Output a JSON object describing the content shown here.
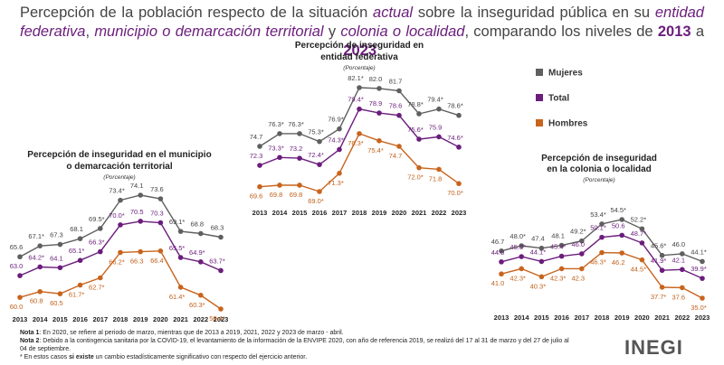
{
  "header": {
    "title_parts": [
      "Percepción de la población respecto de la situación ",
      "actual",
      " sobre la inseguridad pública en su ",
      "entidad federativa",
      ", ",
      "municipio o demarcación territorial",
      " y ",
      "colonia o localidad",
      ", comparando los niveles de ",
      "2013",
      " a ",
      "2023",
      "."
    ],
    "logo": "INEGI"
  },
  "chart_data": [
    {
      "type": "line",
      "title_lines": [
        "Percepción de inseguridad en",
        "entidad federativa"
      ],
      "subtitle": "(Porcentaje)",
      "x": [
        2013,
        2014,
        2015,
        2016,
        2017,
        2018,
        2019,
        2020,
        2021,
        2022,
        2023
      ],
      "series": [
        {
          "name": "Mujeres",
          "color": "#5f5f5f",
          "values": [
            74.7,
            76.3,
            76.3,
            75.3,
            76.9,
            82.1,
            82.0,
            81.7,
            78.8,
            79.4,
            78.6
          ],
          "value_labels": [
            "74.7",
            "76.3*",
            "76.3*",
            "75.3*",
            "76.9*",
            "82.1*",
            "82.0",
            "81.7",
            "78.8*",
            "79.4*",
            "78.6*"
          ]
        },
        {
          "name": "Total",
          "color": "#6b1d7c",
          "values": [
            72.3,
            73.3,
            73.2,
            72.4,
            74.3,
            79.4,
            78.9,
            78.6,
            75.6,
            75.9,
            74.6
          ],
          "value_labels": [
            "72.3",
            "73.3*",
            "73.2",
            "72.4*",
            "74.3*",
            "79.4*",
            "78.9",
            "78.6",
            "75.6*",
            "75.9",
            "74.6*"
          ]
        },
        {
          "name": "Hombres",
          "color": "#c8641e",
          "values": [
            69.6,
            69.8,
            69.8,
            69.0,
            71.3,
            76.3,
            75.4,
            74.7,
            72.0,
            71.8,
            70.0
          ],
          "value_labels": [
            "69.6",
            "69.8",
            "69.8",
            "69.0*",
            "71.3*",
            "76.3*",
            "75.4*",
            "74.7",
            "72.0*",
            "71.8",
            "70.0*"
          ]
        }
      ]
    },
    {
      "type": "line",
      "title_lines": [
        "Percepción de inseguridad en el  municipio",
        "o demarcación territorial"
      ],
      "subtitle": "(Porcentaje)",
      "x": [
        2013,
        2014,
        2015,
        2016,
        2017,
        2018,
        2019,
        2020,
        2021,
        2022,
        2023
      ],
      "series": [
        {
          "name": "Mujeres",
          "color": "#5f5f5f",
          "values": [
            65.6,
            67.1,
            67.3,
            68.1,
            69.5,
            73.4,
            74.1,
            73.6,
            69.1,
            68.8,
            68.3
          ],
          "value_labels": [
            "65.6",
            "67.1*",
            "67.3",
            "68.1",
            "69.5*",
            "73.4*",
            "74.1",
            "73.6",
            "69.1*",
            "68.8",
            "68.3"
          ]
        },
        {
          "name": "Total",
          "color": "#6b1d7c",
          "values": [
            63.0,
            64.2,
            64.1,
            65.1,
            66.3,
            70.0,
            70.5,
            70.3,
            65.5,
            64.9,
            63.7
          ],
          "value_labels": [
            "63.0",
            "64.2*",
            "64.1",
            "65.1*",
            "66.3*",
            "70.0*",
            "70.5",
            "70.3",
            "65.5*",
            "64.9*",
            "63.7*"
          ]
        },
        {
          "name": "Hombres",
          "color": "#c8641e",
          "values": [
            60.0,
            60.8,
            60.5,
            61.7,
            62.7,
            66.2,
            66.3,
            66.4,
            61.4,
            60.3,
            58.4
          ],
          "value_labels": [
            "60.0",
            "60.8",
            "60.5",
            "61.7*",
            "62.7*",
            "66.2*",
            "66.3",
            "66.4",
            "61.4*",
            "60.3*",
            "58.4*"
          ]
        }
      ]
    },
    {
      "type": "line",
      "title_lines": [
        "Percepción de inseguridad",
        "en la colonia o localidad"
      ],
      "subtitle": "(Porcentaje)",
      "x": [
        2013,
        2014,
        2015,
        2016,
        2017,
        2018,
        2019,
        2020,
        2021,
        2022,
        2023
      ],
      "series": [
        {
          "name": "Mujeres",
          "color": "#5f5f5f",
          "values": [
            46.7,
            48.0,
            47.4,
            48.1,
            49.2,
            53.4,
            54.5,
            52.2,
            45.6,
            46.0,
            44.1
          ],
          "value_labels": [
            "46.7",
            "48.0*",
            "47.4",
            "48.1",
            "49.2*",
            "53.4*",
            "54.5*",
            "52.2*",
            "45.6*",
            "46.0",
            "44.1*"
          ]
        },
        {
          "name": "Total",
          "color": "#6b1d7c",
          "values": [
            44.0,
            45.3,
            44.1,
            45.4,
            46.0,
            50.1,
            50.6,
            48.7,
            41.9,
            42.1,
            39.9
          ],
          "value_labels": [
            "44.0",
            "45.3*",
            "44.1*",
            "45.4*",
            "46.0",
            "50.1*",
            "50.6",
            "48.7*",
            "41.9*",
            "42.1",
            "39.9*"
          ]
        },
        {
          "name": "Hombres",
          "color": "#c8641e",
          "values": [
            41.0,
            42.3,
            40.3,
            42.3,
            42.3,
            46.3,
            46.2,
            44.5,
            37.7,
            37.6,
            35.0
          ],
          "value_labels": [
            "41.0",
            "42.3*",
            "40.3*",
            "42.3*",
            "42.3",
            "46.3*",
            "46.2",
            "44.5*",
            "37.7*",
            "37.6",
            "35.0*"
          ]
        }
      ]
    }
  ],
  "notes": [
    [
      "Nota 1",
      ": En 2020, se refiere al periodo de marzo, mientras que de 2013 a 2019, 2021, 2022 y 2023 de marzo - abril."
    ],
    [
      "Nota 2",
      ": Debido a la contingencia sanitaria por la COVID-19, el levantamiento de la información de la ENVIPE 2020, con año de referencia 2019, se realizó del 17 al 31 de marzo y del 27 de julio al 04 de septiembre."
    ],
    [
      "* En estos casos ",
      "si existe",
      " un cambio estadísticamente significativo con respecto del ejercicio anterior."
    ]
  ]
}
